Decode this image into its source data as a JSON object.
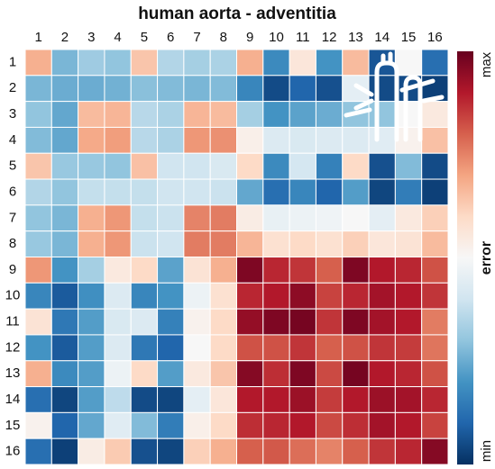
{
  "chart_data": {
    "type": "heatmap",
    "title": "human aorta - adventitia",
    "x": [
      "1",
      "2",
      "3",
      "4",
      "5",
      "6",
      "7",
      "8",
      "9",
      "10",
      "11",
      "12",
      "13",
      "14",
      "15",
      "16"
    ],
    "y": [
      "1",
      "2",
      "3",
      "4",
      "5",
      "6",
      "7",
      "8",
      "9",
      "10",
      "11",
      "12",
      "13",
      "14",
      "15",
      "16"
    ],
    "values": [
      [
        0.68,
        0.27,
        0.32,
        0.3,
        0.64,
        0.35,
        0.33,
        0.34,
        0.68,
        0.18,
        0.56,
        0.2,
        0.66,
        0.07,
        0.5,
        0.12
      ],
      [
        0.27,
        0.25,
        0.25,
        0.26,
        0.29,
        0.28,
        0.27,
        0.28,
        0.17,
        0.05,
        0.1,
        0.06,
        0.45,
        0.05,
        0.05,
        0.03
      ],
      [
        0.3,
        0.24,
        0.66,
        0.67,
        0.36,
        0.34,
        0.67,
        0.66,
        0.33,
        0.2,
        0.23,
        0.25,
        0.3,
        0.3,
        0.5,
        0.55
      ],
      [
        0.28,
        0.24,
        0.69,
        0.71,
        0.36,
        0.34,
        0.72,
        0.73,
        0.53,
        0.43,
        0.42,
        0.43,
        0.43,
        0.44,
        0.52,
        0.65
      ],
      [
        0.64,
        0.31,
        0.31,
        0.3,
        0.65,
        0.4,
        0.4,
        0.42,
        0.6,
        0.18,
        0.41,
        0.16,
        0.6,
        0.06,
        0.28,
        0.05
      ],
      [
        0.35,
        0.3,
        0.38,
        0.38,
        0.38,
        0.4,
        0.4,
        0.39,
        0.24,
        0.12,
        0.17,
        0.1,
        0.22,
        0.04,
        0.15,
        0.03
      ],
      [
        0.3,
        0.27,
        0.68,
        0.72,
        0.38,
        0.39,
        0.75,
        0.76,
        0.54,
        0.46,
        0.47,
        0.48,
        0.5,
        0.45,
        0.55,
        0.62
      ],
      [
        0.31,
        0.27,
        0.68,
        0.72,
        0.39,
        0.4,
        0.76,
        0.76,
        0.67,
        0.58,
        0.6,
        0.58,
        0.62,
        0.56,
        0.57,
        0.66
      ],
      [
        0.72,
        0.2,
        0.33,
        0.55,
        0.6,
        0.23,
        0.57,
        0.68,
        0.97,
        0.88,
        0.86,
        0.8,
        0.97,
        0.9,
        0.88,
        0.82
      ],
      [
        0.17,
        0.08,
        0.19,
        0.43,
        0.17,
        0.2,
        0.47,
        0.58,
        0.88,
        0.9,
        0.95,
        0.84,
        0.88,
        0.92,
        0.9,
        0.86
      ],
      [
        0.57,
        0.14,
        0.22,
        0.42,
        0.43,
        0.16,
        0.52,
        0.6,
        0.94,
        0.97,
        0.98,
        0.86,
        0.97,
        0.92,
        0.9,
        0.76
      ],
      [
        0.2,
        0.08,
        0.22,
        0.43,
        0.14,
        0.1,
        0.5,
        0.6,
        0.82,
        0.82,
        0.86,
        0.8,
        0.82,
        0.86,
        0.85,
        0.77
      ],
      [
        0.68,
        0.18,
        0.22,
        0.47,
        0.6,
        0.22,
        0.55,
        0.64,
        0.96,
        0.87,
        0.97,
        0.83,
        0.98,
        0.9,
        0.88,
        0.82
      ],
      [
        0.12,
        0.04,
        0.22,
        0.37,
        0.05,
        0.04,
        0.45,
        0.56,
        0.9,
        0.9,
        0.93,
        0.85,
        0.9,
        0.93,
        0.92,
        0.88
      ],
      [
        0.52,
        0.1,
        0.24,
        0.44,
        0.28,
        0.15,
        0.53,
        0.6,
        0.87,
        0.88,
        0.9,
        0.83,
        0.87,
        0.92,
        0.9,
        0.84
      ],
      [
        0.12,
        0.03,
        0.54,
        0.63,
        0.06,
        0.04,
        0.62,
        0.68,
        0.8,
        0.81,
        0.78,
        0.75,
        0.8,
        0.86,
        0.88,
        0.96
      ]
    ],
    "zlim": [
      0,
      1
    ],
    "zticks": [
      {
        "value": 0,
        "label": "min"
      },
      {
        "value": 1,
        "label": "max"
      }
    ],
    "zlabel": "error",
    "colors": [
      "#053061",
      "#2166ac",
      "#4393c3",
      "#92c5de",
      "#d1e5f0",
      "#f7f7f7",
      "#fddbc7",
      "#f4a582",
      "#d6604d",
      "#b2182b",
      "#67001f"
    ]
  }
}
